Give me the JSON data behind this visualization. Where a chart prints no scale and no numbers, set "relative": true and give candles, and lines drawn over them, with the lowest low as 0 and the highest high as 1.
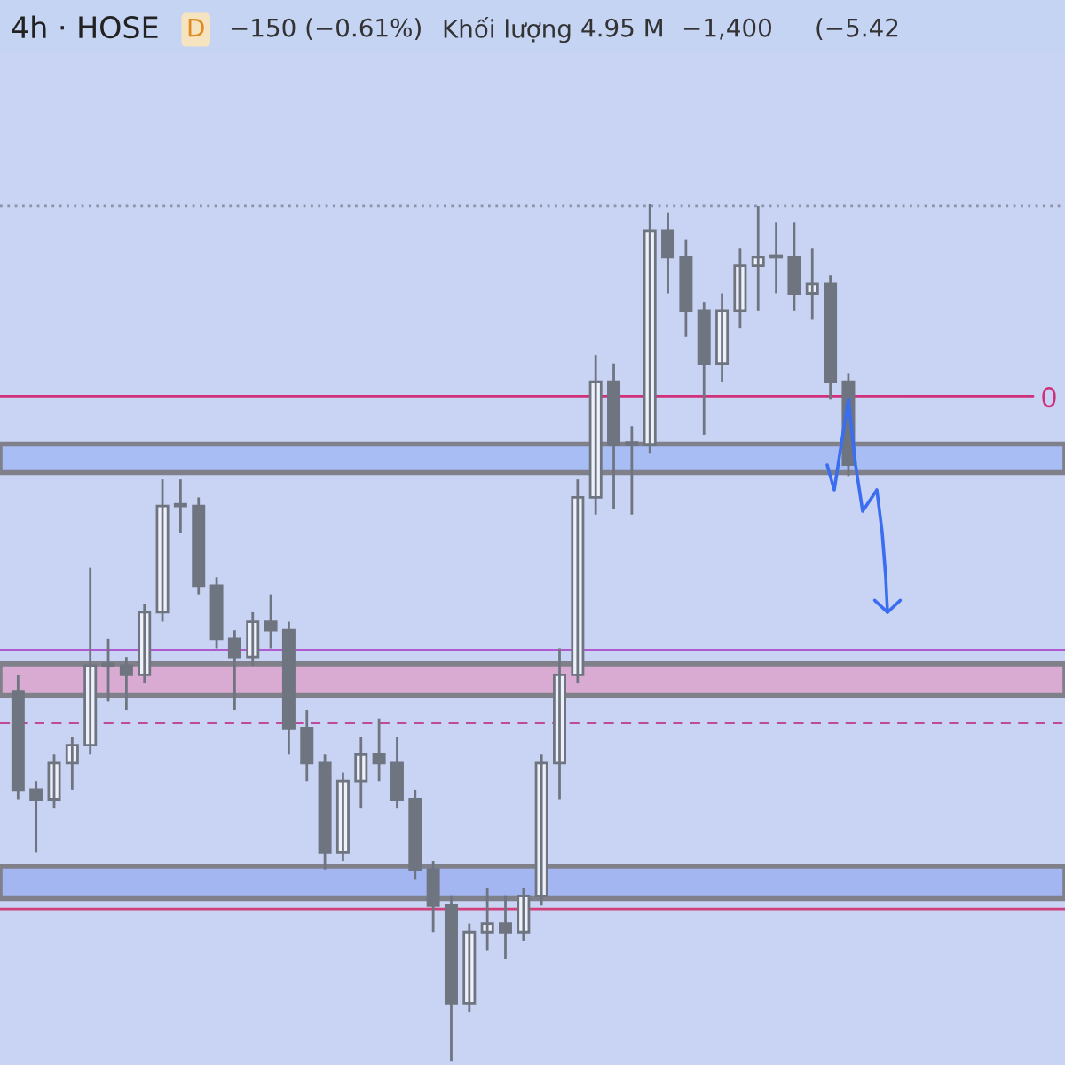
{
  "chart_data": {
    "type": "candlestick",
    "relative": true,
    "title": "4h · HOSE",
    "annotations": [
      "D",
      "−150 (−0.61%)",
      "Khối lượng",
      "4.95 M",
      "−1,400",
      "(−5.42",
      "0"
    ],
    "color": "#6e7580",
    "categories": [
      null,
      null,
      null,
      null,
      null,
      null,
      null,
      null,
      null,
      null,
      null,
      null,
      null,
      null,
      null,
      null,
      null,
      null,
      null,
      null,
      null,
      null,
      null,
      null,
      null,
      null,
      null,
      null,
      null,
      null,
      null,
      null,
      null,
      null,
      null,
      null,
      null,
      null,
      null,
      null,
      null,
      null,
      null,
      null,
      null,
      null,
      null
    ],
    "ohlc": [
      [
        0.431,
        0.451,
        0.306,
        0.317
      ],
      [
        0.317,
        0.327,
        0.244,
        0.306
      ],
      [
        0.306,
        0.358,
        0.296,
        0.348
      ],
      [
        0.348,
        0.379,
        0.317,
        0.369
      ],
      [
        0.369,
        0.576,
        0.358,
        0.462
      ],
      [
        0.462,
        0.493,
        0.42,
        0.462
      ],
      [
        0.462,
        0.472,
        0.41,
        0.451
      ],
      [
        0.451,
        0.534,
        0.441,
        0.524
      ],
      [
        0.524,
        0.679,
        0.513,
        0.648
      ],
      [
        0.648,
        0.679,
        0.617,
        0.648
      ],
      [
        0.648,
        0.658,
        0.545,
        0.555
      ],
      [
        0.555,
        0.565,
        0.482,
        0.493
      ],
      [
        0.493,
        0.503,
        0.41,
        0.472
      ],
      [
        0.472,
        0.524,
        0.462,
        0.513
      ],
      [
        0.513,
        0.545,
        0.482,
        0.503
      ],
      [
        0.503,
        0.513,
        0.358,
        0.389
      ],
      [
        0.389,
        0.41,
        0.327,
        0.348
      ],
      [
        0.348,
        0.358,
        0.224,
        0.244
      ],
      [
        0.244,
        0.337,
        0.234,
        0.327
      ],
      [
        0.327,
        0.379,
        0.296,
        0.358
      ],
      [
        0.358,
        0.4,
        0.327,
        0.348
      ],
      [
        0.348,
        0.379,
        0.296,
        0.306
      ],
      [
        0.306,
        0.317,
        0.213,
        0.224
      ],
      [
        0.224,
        0.234,
        0.151,
        0.182
      ],
      [
        0.182,
        0.193,
        0.0,
        0.068
      ],
      [
        0.068,
        0.161,
        0.058,
        0.151
      ],
      [
        0.151,
        0.203,
        0.13,
        0.161
      ],
      [
        0.161,
        0.193,
        0.12,
        0.151
      ],
      [
        0.151,
        0.203,
        0.141,
        0.193
      ],
      [
        0.193,
        0.358,
        0.182,
        0.348
      ],
      [
        0.348,
        0.482,
        0.306,
        0.451
      ],
      [
        0.451,
        0.679,
        0.441,
        0.658
      ],
      [
        0.658,
        0.824,
        0.638,
        0.793
      ],
      [
        0.793,
        0.814,
        0.645,
        0.72
      ],
      [
        0.72,
        0.741,
        0.638,
        0.72
      ],
      [
        0.72,
        1.0,
        0.71,
        0.969
      ],
      [
        0.969,
        0.99,
        0.896,
        0.938
      ],
      [
        0.938,
        0.959,
        0.845,
        0.876
      ],
      [
        0.876,
        0.886,
        0.731,
        0.814
      ],
      [
        0.814,
        0.896,
        0.793,
        0.876
      ],
      [
        0.876,
        0.948,
        0.855,
        0.928
      ],
      [
        0.928,
        0.998,
        0.876,
        0.938
      ],
      [
        0.938,
        0.979,
        0.896,
        0.938
      ],
      [
        0.938,
        0.979,
        0.876,
        0.896
      ],
      [
        0.896,
        0.948,
        0.865,
        0.907
      ],
      [
        0.907,
        0.917,
        0.772,
        0.793
      ],
      [
        0.793,
        0.803,
        0.683,
        0.696
      ]
    ],
    "bands": [
      {
        "axis": "y",
        "from": 0.687,
        "to": 0.72,
        "color": "#a7bdf3"
      },
      {
        "axis": "y",
        "from": 0.427,
        "to": 0.464,
        "color": "#d9abd2"
      },
      {
        "axis": "y",
        "from": 0.19,
        "to": 0.228,
        "color": "#a3b6f2"
      }
    ],
    "ref_lines": [
      {
        "axis": "y",
        "value": 0.776,
        "color": "#d0307a",
        "line_style": "solid"
      },
      {
        "axis": "y",
        "value": 0.48,
        "color": "#b05ad0",
        "line_style": "solid"
      },
      {
        "axis": "y",
        "value": 0.395,
        "color": "#c04a9a",
        "line_style": "dashed"
      },
      {
        "axis": "y",
        "value": 0.178,
        "color": "#d0407a",
        "line_style": "solid"
      },
      {
        "axis": "y",
        "value": 0.998,
        "color": "#8a94a8",
        "line_style": "dotted"
      }
    ]
  }
}
